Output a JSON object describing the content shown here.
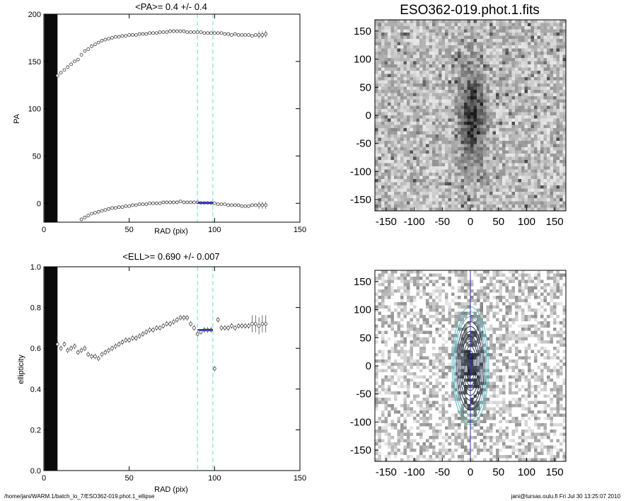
{
  "footer": {
    "left": "/home/jani/WARM.1/batch_lo_7/ESO362-019.phot.1_ellipse",
    "right": "jani@tursas.oulu.fi  Fri Jul 30 13:25:07 2010"
  },
  "colors": {
    "marker": "#555555",
    "dash": "#8fe3e3",
    "fit": "#1010c0",
    "center": "#3030b0",
    "contour": "#2a3a55",
    "contour_outer": "#5ab7c0"
  },
  "chart_data": [
    {
      "id": "pa",
      "type": "scatter",
      "title": "<PA>=   0.4 +/-   0.4",
      "xlabel": "RAD (pix)",
      "ylabel": "PA",
      "xlim": [
        0,
        150
      ],
      "ylim": [
        -20,
        200
      ],
      "xticks": [
        "0",
        "50",
        "100",
        "150"
      ],
      "yticks": [
        "0",
        "50",
        "100",
        "150",
        "200"
      ],
      "vlines": [
        90,
        99
      ],
      "fit_range": [
        90,
        99
      ],
      "fit_value": 0.4,
      "series": [
        {
          "x": [
            8,
            10,
            12,
            14,
            16,
            18,
            20,
            22,
            24,
            26,
            28,
            30,
            32,
            34,
            36,
            38,
            40,
            42,
            44,
            46,
            48,
            50,
            52,
            54,
            56,
            58,
            60,
            62,
            64,
            66,
            68,
            70,
            72,
            74,
            76,
            78,
            80,
            82,
            84,
            86,
            88,
            90,
            92,
            94,
            96,
            98,
            100,
            102,
            104,
            106,
            108,
            110,
            112,
            114,
            116,
            118,
            120,
            122,
            124,
            126,
            128,
            130
          ],
          "y": [
            135,
            138,
            141,
            144,
            147,
            150,
            152,
            157,
            161,
            163,
            166,
            168,
            170,
            172,
            173,
            174,
            175,
            176,
            176,
            177,
            177,
            178,
            178,
            178,
            179,
            179,
            179,
            180,
            180,
            180,
            181,
            181,
            181,
            182,
            182,
            182,
            182,
            182,
            181,
            181,
            181,
            181,
            181,
            180,
            180,
            180,
            180,
            180,
            180,
            179,
            179,
            178,
            179,
            178,
            178,
            178,
            178,
            177,
            178,
            178,
            178,
            179
          ]
        },
        {
          "x": [
            20,
            22,
            24,
            26,
            28,
            30,
            32,
            34,
            36,
            38,
            40,
            42,
            44,
            46,
            48,
            50,
            52,
            54,
            56,
            58,
            60,
            62,
            64,
            66,
            68,
            70,
            72,
            74,
            76,
            78,
            80,
            82,
            84,
            86,
            88,
            90,
            92,
            94,
            96,
            98,
            100,
            102,
            104,
            106,
            108,
            110,
            112,
            114,
            116,
            118,
            120,
            122,
            124,
            126,
            128,
            130
          ],
          "y": [
            -21,
            -17,
            -15,
            -13,
            -11,
            -10,
            -9,
            -8,
            -7,
            -6,
            -5,
            -5,
            -4,
            -4,
            -3,
            -3,
            -2,
            -2,
            -1,
            -1,
            -1,
            0,
            0,
            0,
            0,
            1,
            1,
            1,
            1,
            1,
            2,
            1,
            1,
            1,
            1,
            1,
            0.5,
            0.4,
            0.4,
            0.3,
            0,
            -1,
            -1,
            -1,
            -2,
            -2,
            -2,
            -2,
            -3,
            -3,
            -3,
            -2,
            -2,
            -2,
            -2,
            -2
          ]
        }
      ]
    },
    {
      "id": "ell",
      "type": "scatter",
      "title": "<ELL>= 0.690 +/-  0.007",
      "xlabel": "RAD (pix)",
      "ylabel": "ellipticity",
      "xlim": [
        0,
        150
      ],
      "ylim": [
        0.0,
        1.0
      ],
      "xticks": [
        "0",
        "50",
        "100",
        "150"
      ],
      "yticks": [
        "0.0",
        "0.2",
        "0.4",
        "0.6",
        "0.8",
        "1.0"
      ],
      "vlines": [
        90,
        99
      ],
      "fit_range": [
        90,
        99
      ],
      "fit_value": 0.69,
      "series": [
        {
          "x": [
            8,
            10,
            12,
            14,
            16,
            18,
            20,
            22,
            24,
            26,
            28,
            30,
            32,
            34,
            36,
            38,
            40,
            42,
            44,
            46,
            48,
            50,
            52,
            54,
            56,
            58,
            60,
            62,
            64,
            66,
            68,
            70,
            72,
            74,
            76,
            78,
            80,
            82,
            84,
            86,
            88,
            90,
            92,
            94,
            96,
            98,
            100,
            102,
            104,
            106,
            108,
            110,
            112,
            114,
            116,
            118,
            120,
            122,
            124,
            126,
            128,
            130
          ],
          "y": [
            0.62,
            0.6,
            0.62,
            0.59,
            0.6,
            0.61,
            0.58,
            0.59,
            0.6,
            0.57,
            0.56,
            0.56,
            0.55,
            0.57,
            0.58,
            0.59,
            0.6,
            0.61,
            0.62,
            0.63,
            0.64,
            0.64,
            0.65,
            0.65,
            0.66,
            0.67,
            0.68,
            0.69,
            0.69,
            0.7,
            0.7,
            0.71,
            0.72,
            0.72,
            0.73,
            0.74,
            0.75,
            0.75,
            0.75,
            0.72,
            0.7,
            0.67,
            0.68,
            0.69,
            0.69,
            0.69,
            0.5,
            0.74,
            0.7,
            0.7,
            0.7,
            0.71,
            0.7,
            0.71,
            0.71,
            0.71,
            0.71,
            0.72,
            0.72,
            0.71,
            0.72,
            0.72
          ]
        }
      ]
    },
    {
      "id": "img",
      "type": "heatmap",
      "title": "ESO362-019.phot.1.fits",
      "xticks": [
        "-150",
        "-100",
        "-50",
        "0",
        "50",
        "100",
        "150"
      ],
      "yticks": [
        "150",
        "100",
        "50",
        "0",
        "-50",
        "-100",
        "-150"
      ],
      "xlim": [
        -170,
        170
      ],
      "ylim": [
        -170,
        170
      ]
    },
    {
      "id": "contour",
      "type": "heatmap",
      "title": "",
      "xticks": [
        "-150",
        "-100",
        "-50",
        "0",
        "50",
        "100",
        "150"
      ],
      "yticks": [
        "150",
        "100",
        "50",
        "0",
        "-50",
        "-100",
        "-150"
      ],
      "xlim": [
        -170,
        170
      ],
      "ylim": [
        -170,
        170
      ]
    }
  ]
}
